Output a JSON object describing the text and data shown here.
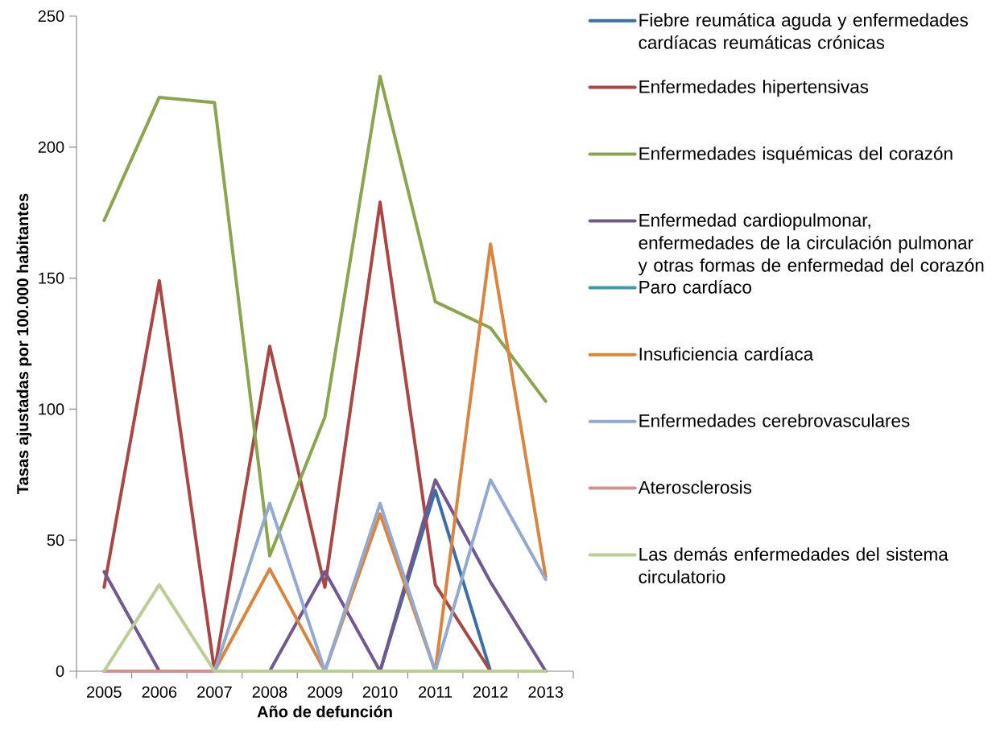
{
  "chart_data": {
    "type": "line",
    "xlabel": "Año de defunción",
    "ylabel": "Tasas ajustadas por 100.000 habitantes",
    "categories": [
      "2005",
      "2006",
      "2007",
      "2008",
      "2009",
      "2010",
      "2011",
      "2012",
      "2013"
    ],
    "ylim": [
      0,
      250
    ],
    "yticks": [
      0,
      50,
      100,
      150,
      200,
      250
    ],
    "grid": false,
    "legend": "right",
    "marker": "none",
    "line_style": "solid",
    "series": [
      {
        "name": "Fiebre reumática aguda y enfermedades cardíacas reumáticas crónicas",
        "color": "#3c6ea6",
        "values": [
          0,
          0,
          0,
          0,
          0,
          0,
          69,
          0,
          0
        ]
      },
      {
        "name": "Enfermedades hipertensivas",
        "color": "#aa4643",
        "values": [
          32,
          149,
          0,
          124,
          32,
          179,
          33,
          0,
          0
        ]
      },
      {
        "name": "Enfermedades isquémicas del corazón",
        "color": "#89a54e",
        "values": [
          172,
          219,
          217,
          44,
          97,
          227,
          141,
          131,
          103
        ]
      },
      {
        "name": "Enfermedad cardiopulmonar, enfermedades de la circulación pulmonar y otras formas de enfermedad del corazón",
        "color": "#71588f",
        "values": [
          38,
          0,
          0,
          0,
          38,
          0,
          73,
          34,
          0
        ]
      },
      {
        "name": "Paro cardíaco",
        "color": "#4198af",
        "values": [
          null,
          null,
          null,
          null,
          null,
          null,
          null,
          null,
          null
        ]
      },
      {
        "name": "Insuficiencia cardíaca",
        "color": "#db843d",
        "values": [
          0,
          0,
          0,
          39,
          0,
          60,
          0,
          163,
          36
        ]
      },
      {
        "name": "Enfermedades cerebrovasculares",
        "color": "#93a9cf",
        "values": [
          0,
          0,
          0,
          64,
          0,
          64,
          0,
          73,
          35
        ]
      },
      {
        "name": "Aterosclerosis",
        "color": "#d19392",
        "values": [
          0,
          0,
          0,
          null,
          null,
          null,
          null,
          null,
          null
        ]
      },
      {
        "name": "Las demás enfermedades del sistema circulatorio",
        "color": "#b9cd96",
        "values": [
          0,
          33,
          0,
          0,
          0,
          0,
          0,
          0,
          0
        ]
      }
    ]
  }
}
